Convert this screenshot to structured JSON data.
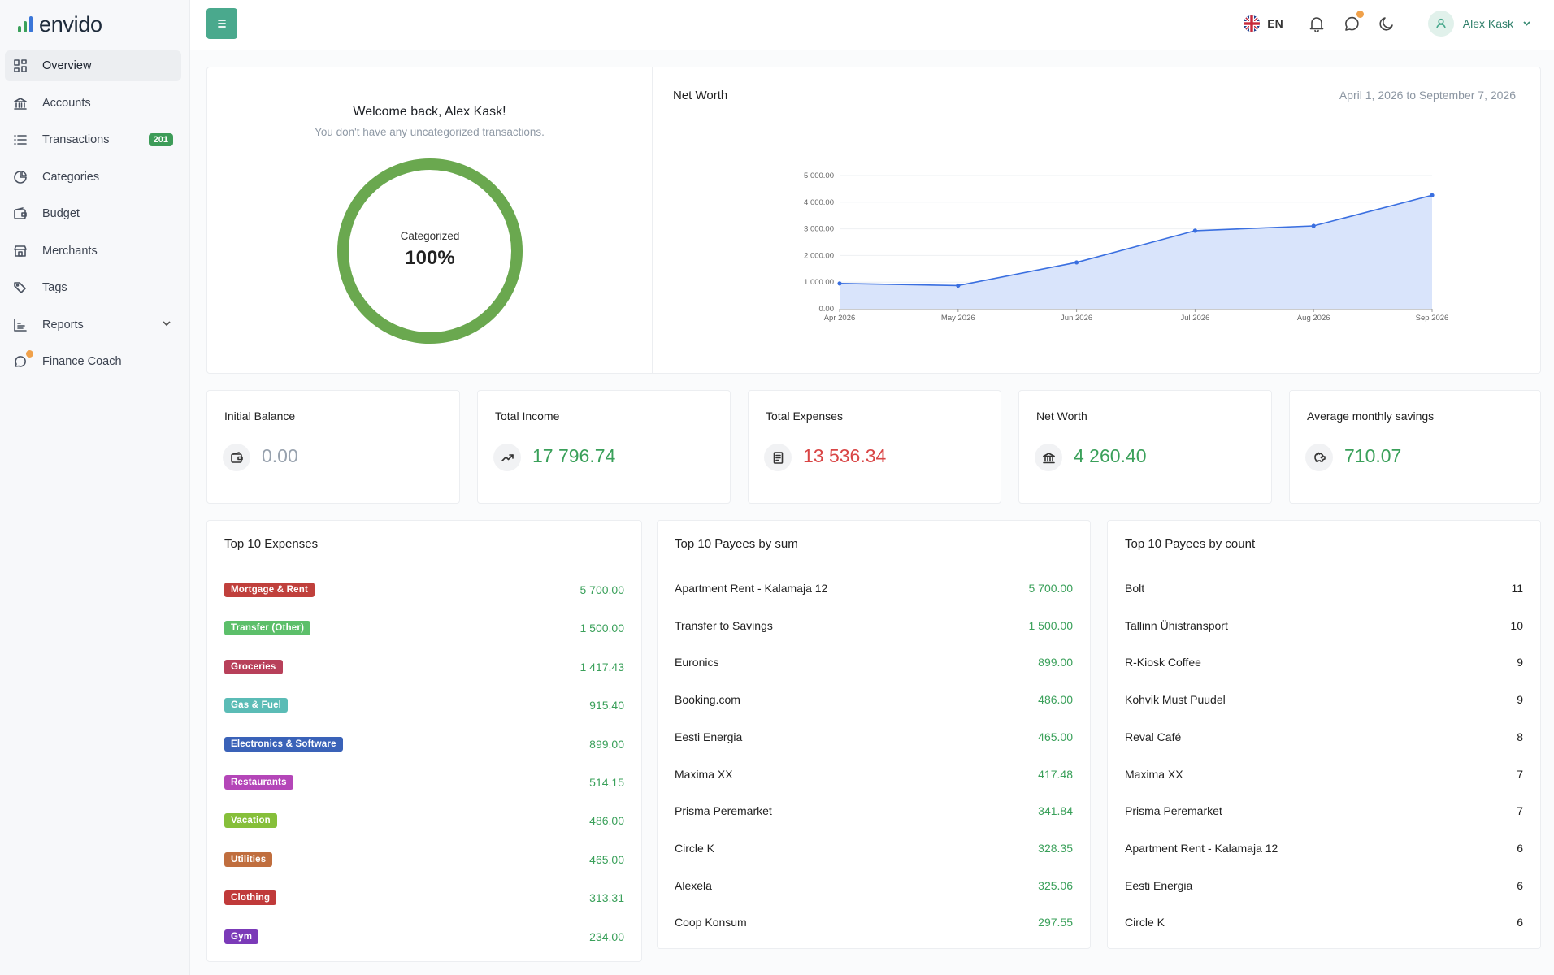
{
  "brand": {
    "name": "envido",
    "bar_colors": [
      "#3aa05a",
      "#3aa05a",
      "#3a76d8"
    ]
  },
  "sidebar": {
    "items": [
      {
        "label": "Overview",
        "icon": "grid-icon"
      },
      {
        "label": "Accounts",
        "icon": "bank-icon"
      },
      {
        "label": "Transactions",
        "icon": "list-icon",
        "badge": "201"
      },
      {
        "label": "Categories",
        "icon": "pie-chart-icon"
      },
      {
        "label": "Budget",
        "icon": "wallet-icon"
      },
      {
        "label": "Merchants",
        "icon": "store-icon"
      },
      {
        "label": "Tags",
        "icon": "tags-icon"
      },
      {
        "label": "Reports",
        "icon": "bar-chart-icon"
      },
      {
        "label": "Finance Coach",
        "icon": "chat-icon"
      }
    ]
  },
  "topbar": {
    "language": "EN",
    "user_name": "Alex Kask"
  },
  "welcome": {
    "title": "Welcome back, Alex Kask!",
    "subtitle": "You don't have any uncategorized transactions.",
    "donut_label": "Categorized",
    "donut_value": "100%",
    "donut_fraction": 1.0
  },
  "net_worth_chart": {
    "title": "Net Worth",
    "date_range": "April 1, 2026 to September 7, 2026"
  },
  "chart_data": {
    "type": "area",
    "categories": [
      "Apr 2026",
      "May 2026",
      "Jun 2026",
      "Jul 2026",
      "Aug 2026",
      "Sep 2026"
    ],
    "series": [
      {
        "values": [
          950,
          870,
          1740,
          2930,
          3110,
          4260
        ]
      }
    ],
    "y_ticks": [
      "0.00",
      "1 000.00",
      "2 000.00",
      "3 000.00",
      "4 000.00",
      "5 000.00"
    ],
    "ylim": [
      0,
      5000
    ],
    "line_color": "#3a6fe0",
    "fill_color": "#d9e4fb"
  },
  "stats": [
    {
      "title": "Initial Balance",
      "value": "0.00",
      "icon": "wallet-icon",
      "color": "#98a2ae"
    },
    {
      "title": "Total Income",
      "value": "17 796.74",
      "icon": "trend-up-icon",
      "color": "#3aa05a"
    },
    {
      "title": "Total Expenses",
      "value": "13 536.34",
      "icon": "receipt-icon",
      "color": "#d94545"
    },
    {
      "title": "Net Worth",
      "value": "4 260.40",
      "icon": "bank-icon",
      "color": "#3aa05a"
    },
    {
      "title": "Average monthly savings",
      "value": "710.07",
      "icon": "piggy-bank-icon",
      "color": "#3aa05a"
    }
  ],
  "top_expenses": {
    "title": "Top 10 Expenses",
    "rows": [
      {
        "label": "Mortgage & Rent",
        "value": "5 700.00",
        "color": "#c0403c"
      },
      {
        "label": "Transfer (Other)",
        "value": "1 500.00",
        "color": "#5cbf6a"
      },
      {
        "label": "Groceries",
        "value": "1 417.43",
        "color": "#b8405a"
      },
      {
        "label": "Gas & Fuel",
        "value": "915.40",
        "color": "#5bbcb6"
      },
      {
        "label": "Electronics & Software",
        "value": "899.00",
        "color": "#3a62b8"
      },
      {
        "label": "Restaurants",
        "value": "514.15",
        "color": "#b446b8"
      },
      {
        "label": "Vacation",
        "value": "486.00",
        "color": "#86bf3a"
      },
      {
        "label": "Utilities",
        "value": "465.00",
        "color": "#c06e3e"
      },
      {
        "label": "Clothing",
        "value": "313.31",
        "color": "#c03a3a"
      },
      {
        "label": "Gym",
        "value": "234.00",
        "color": "#7b3ab8"
      }
    ]
  },
  "top_payees_sum": {
    "title": "Top 10 Payees by sum",
    "rows": [
      {
        "label": "Apartment Rent - Kalamaja 12",
        "value": "5 700.00"
      },
      {
        "label": "Transfer to Savings",
        "value": "1 500.00"
      },
      {
        "label": "Euronics",
        "value": "899.00"
      },
      {
        "label": "Booking.com",
        "value": "486.00"
      },
      {
        "label": "Eesti Energia",
        "value": "465.00"
      },
      {
        "label": "Maxima XX",
        "value": "417.48"
      },
      {
        "label": "Prisma Peremarket",
        "value": "341.84"
      },
      {
        "label": "Circle K",
        "value": "328.35"
      },
      {
        "label": "Alexela",
        "value": "325.06"
      },
      {
        "label": "Coop Konsum",
        "value": "297.55"
      }
    ]
  },
  "top_payees_count": {
    "title": "Top 10 Payees by count",
    "rows": [
      {
        "label": "Bolt",
        "value": "11"
      },
      {
        "label": "Tallinn Ühistransport",
        "value": "10"
      },
      {
        "label": "R-Kiosk Coffee",
        "value": "9"
      },
      {
        "label": "Kohvik Must Puudel",
        "value": "9"
      },
      {
        "label": "Reval Café",
        "value": "8"
      },
      {
        "label": "Maxima XX",
        "value": "7"
      },
      {
        "label": "Prisma Peremarket",
        "value": "7"
      },
      {
        "label": "Apartment Rent - Kalamaja 12",
        "value": "6"
      },
      {
        "label": "Eesti Energia",
        "value": "6"
      },
      {
        "label": "Circle K",
        "value": "6"
      }
    ]
  }
}
